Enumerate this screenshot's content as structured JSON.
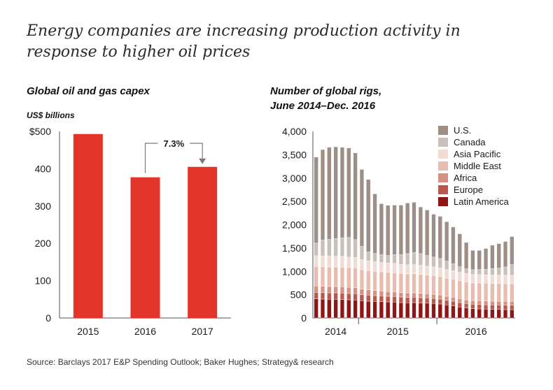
{
  "headline": "Energy companies are increasing production activity in response to higher oil prices",
  "source": "Source: Barclays 2017 E&P Spending Outlook; Baker Hughes; Strategy& research",
  "colors": {
    "capex_bar": "#e3342a",
    "us": "#9d8f86",
    "canada": "#c9c0ba",
    "asia_pacific": "#f1dcd5",
    "middle_east": "#e8bdb0",
    "africa": "#d49285",
    "europe": "#b9594d",
    "latin_america": "#8e1616"
  },
  "chart_data": [
    {
      "type": "bar",
      "title": "Global oil and gas capex",
      "ylabel": "US$ billions",
      "categories": [
        "2015",
        "2016",
        "2017"
      ],
      "values": [
        493,
        377,
        405
      ],
      "ylim": [
        0,
        500
      ],
      "yticks": [
        "$500",
        "400",
        "300",
        "200",
        "100",
        "0"
      ],
      "annotation": {
        "text": "7.3%",
        "from": "2016",
        "to": "2017"
      }
    },
    {
      "type": "bar",
      "stacked": true,
      "title": "Number of global rigs,\nJune 2014–Dec. 2016",
      "ylim": [
        0,
        4000
      ],
      "yticks": [
        "4,000",
        "3,500",
        "3,000",
        "2,500",
        "2,000",
        "1,500",
        "1,000",
        "500",
        "0"
      ],
      "xgroups": [
        "2014",
        "2015",
        "2016"
      ],
      "legend_position": "top-right",
      "series": [
        {
          "name": "Latin America",
          "values": [
            410,
            405,
            400,
            400,
            395,
            390,
            385,
            370,
            360,
            355,
            350,
            345,
            340,
            330,
            325,
            330,
            320,
            320,
            310,
            300,
            280,
            260,
            235,
            215,
            200,
            195,
            190,
            185,
            185,
            180,
            180
          ]
        },
        {
          "name": "Europe",
          "values": [
            140,
            140,
            140,
            140,
            140,
            135,
            135,
            130,
            130,
            125,
            125,
            120,
            120,
            120,
            115,
            115,
            115,
            110,
            110,
            105,
            100,
            100,
            95,
            95,
            95,
            95,
            95,
            95,
            95,
            95,
            95
          ]
        },
        {
          "name": "Africa",
          "values": [
            135,
            135,
            135,
            135,
            135,
            130,
            130,
            120,
            115,
            110,
            105,
            100,
            100,
            95,
            95,
            95,
            95,
            90,
            90,
            90,
            85,
            85,
            85,
            80,
            80,
            80,
            80,
            80,
            80,
            80,
            80
          ]
        },
        {
          "name": "Middle East",
          "values": [
            420,
            420,
            420,
            420,
            420,
            425,
            425,
            420,
            410,
            410,
            410,
            415,
            410,
            410,
            410,
            410,
            405,
            400,
            400,
            395,
            390,
            390,
            385,
            385,
            380,
            380,
            380,
            380,
            380,
            380,
            380
          ]
        },
        {
          "name": "Asia Pacific",
          "values": [
            230,
            230,
            230,
            230,
            230,
            225,
            225,
            215,
            210,
            205,
            200,
            200,
            200,
            195,
            195,
            195,
            195,
            190,
            185,
            185,
            185,
            180,
            180,
            180,
            180,
            180,
            180,
            180,
            180,
            180,
            180
          ]
        },
        {
          "name": "Canada",
          "values": [
            270,
            340,
            360,
            380,
            400,
            420,
            380,
            280,
            190,
            180,
            170,
            160,
            190,
            210,
            240,
            260,
            250,
            230,
            210,
            200,
            180,
            150,
            120,
            100,
            100,
            110,
            120,
            140,
            150,
            180,
            230
          ]
        },
        {
          "name": "U.S.",
          "values": [
            1845,
            1940,
            1975,
            1965,
            1940,
            1920,
            1860,
            1650,
            1555,
            1275,
            1090,
            1075,
            1060,
            1060,
            1085,
            1075,
            1000,
            975,
            920,
            905,
            845,
            785,
            705,
            565,
            415,
            410,
            445,
            500,
            525,
            545,
            600
          ]
        }
      ]
    }
  ]
}
